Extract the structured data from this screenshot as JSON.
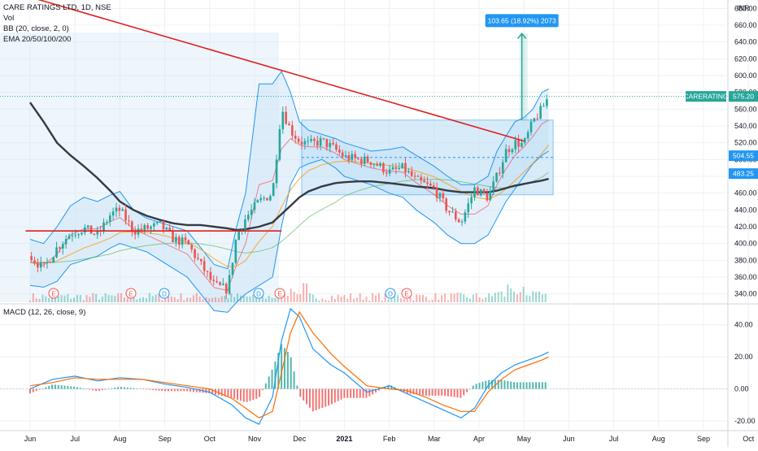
{
  "legend": {
    "symbol": "CARE RATINGS LTD, 1D, NSE",
    "volume": "Vol",
    "bb": "BB (20, close, 2, 0)",
    "ema": "EMA 20/50/100/200",
    "macd": "MACD (12, 26, close, 9)"
  },
  "currency": "INR",
  "colors": {
    "up": "#26a69a",
    "down": "#ef5350",
    "bb": "#2196f3",
    "bb_fill": "#cde5f7",
    "ema_200": "#363a45",
    "trendline": "#e02020",
    "box_border": "#2196f3",
    "box_fill": "#b9dcf5",
    "macd_line": "#2196f3",
    "signal_line": "#ff6d00"
  },
  "chart_data": [
    {
      "type": "candlestick",
      "x_axis": {
        "labels": [
          "Jun",
          "Jul",
          "Aug",
          "Sep",
          "Oct",
          "Nov",
          "Dec",
          "2021",
          "Feb",
          "Mar",
          "Apr",
          "May",
          "Jun",
          "Jul",
          "Aug",
          "Sep",
          "Oct"
        ]
      },
      "y_axis": {
        "ticks": [
          340,
          360,
          380,
          400,
          420,
          440,
          460,
          480,
          500,
          520,
          540,
          560,
          580,
          600,
          620,
          640,
          660,
          680
        ],
        "tick_labels": [
          "340.00",
          "360.00",
          "380.00",
          "400.00",
          "420.00",
          "440.00",
          "460.00",
          "480.00",
          "500.00",
          "520.00",
          "540.00",
          "560.00",
          "580.00",
          "600.00",
          "620.00",
          "640.00",
          "660.00",
          "680.00"
        ],
        "range": [
          330,
          690
        ],
        "scale": "linear",
        "grid": true
      },
      "price_labels": [
        {
          "name": "CARERATING",
          "value": "575.20",
          "color": "#26a69a"
        },
        {
          "value": "504.55",
          "color": "#2196f3"
        },
        {
          "value": "483.25",
          "color": "#2196f3"
        }
      ],
      "measure_label": "103.65 (18.92%) 2073",
      "event_markers": [
        "E",
        "E",
        "D",
        "D",
        "E",
        "D",
        "E"
      ],
      "close_series": {
        "x_months": [
          0.0,
          0.3,
          0.6,
          0.9,
          1.2,
          1.5,
          1.8,
          2.0,
          2.3,
          2.6,
          2.9,
          3.2,
          3.5,
          3.8,
          4.1,
          4.4,
          4.6,
          4.8,
          5.1,
          5.4,
          5.6,
          5.8,
          6.0,
          6.2,
          6.5,
          6.8,
          7.0,
          7.3,
          7.6,
          8.0,
          8.3,
          8.6,
          9.0,
          9.3,
          9.6,
          9.9,
          10.2,
          10.4,
          10.6,
          10.8,
          11.0,
          11.2,
          11.4,
          11.55
        ],
        "close": [
          385,
          370,
          395,
          412,
          418,
          410,
          435,
          440,
          415,
          418,
          422,
          405,
          400,
          375,
          350,
          345,
          410,
          430,
          450,
          460,
          562,
          535,
          522,
          518,
          522,
          512,
          503,
          500,
          498,
          485,
          490,
          475,
          465,
          440,
          425,
          465,
          455,
          480,
          510,
          520,
          518,
          545,
          560,
          575.2
        ]
      },
      "bb_upper": [
        405,
        400,
        420,
        445,
        455,
        450,
        458,
        462,
        440,
        430,
        425,
        420,
        415,
        395,
        375,
        370,
        420,
        460,
        590,
        590,
        605,
        580,
        545,
        535,
        530,
        525,
        520,
        515,
        510,
        512,
        515,
        505,
        492,
        480,
        470,
        470,
        480,
        510,
        528,
        545,
        550,
        560,
        580,
        584
      ],
      "bb_lower": [
        350,
        348,
        355,
        375,
        380,
        385,
        395,
        400,
        395,
        390,
        380,
        370,
        360,
        340,
        320,
        318,
        330,
        340,
        350,
        360,
        420,
        470,
        490,
        495,
        500,
        490,
        480,
        475,
        470,
        460,
        455,
        440,
        425,
        410,
        400,
        400,
        410,
        430,
        450,
        465,
        480,
        495,
        505,
        510
      ],
      "ema_200": [
        568,
        545,
        520,
        505,
        492,
        478,
        462,
        450,
        440,
        433,
        428,
        424,
        422,
        422,
        420,
        418,
        416,
        417,
        420,
        425,
        435,
        445,
        455,
        462,
        468,
        472,
        473,
        474,
        474,
        472,
        470,
        468,
        466,
        463,
        461,
        461,
        461,
        463,
        466,
        469,
        471,
        473,
        475,
        477
      ],
      "trendlines": [
        {
          "from": {
            "x_months": -0.1,
            "price": 695
          },
          "to": {
            "x_months": 11.0,
            "price": 522
          }
        },
        {
          "from": {
            "x_months": -0.1,
            "price": 415
          },
          "to": {
            "x_months": 5.6,
            "price": 415
          }
        }
      ],
      "ranges": [
        {
          "x_from_months": 6.05,
          "x_to_months": 11.65,
          "price_from": 458,
          "price_to": 547
        }
      ],
      "measure_range": {
        "x_months": 10.9,
        "price_from": 547,
        "price_to": 650
      }
    },
    {
      "type": "bar+line",
      "title": "MACD (12, 26, close, 9)",
      "y_axis": {
        "ticks": [
          -20,
          0,
          20,
          40
        ],
        "tick_labels": [
          "-20.00",
          "0.00",
          "20.00",
          "40.00"
        ],
        "range": [
          -25,
          52
        ]
      },
      "macd": {
        "x_months": [
          0.0,
          0.5,
          1.0,
          1.5,
          2.0,
          2.5,
          3.0,
          3.5,
          4.0,
          4.5,
          4.8,
          5.1,
          5.4,
          5.6,
          5.8,
          6.0,
          6.3,
          6.7,
          7.0,
          7.5,
          8.0,
          8.4,
          8.8,
          9.2,
          9.6,
          9.9,
          10.2,
          10.5,
          10.8,
          11.1,
          11.4,
          11.55
        ],
        "values": [
          0,
          6,
          8,
          5,
          7,
          6,
          3,
          1,
          -2,
          -10,
          -18,
          -22,
          -5,
          30,
          50,
          45,
          25,
          15,
          10,
          -2,
          2,
          -3,
          -8,
          -13,
          -18,
          -12,
          2,
          10,
          15,
          18,
          21,
          23
        ]
      },
      "signal": {
        "x_months": [
          0.0,
          0.5,
          1.0,
          1.5,
          2.0,
          2.5,
          3.0,
          3.5,
          4.0,
          4.5,
          4.8,
          5.1,
          5.4,
          5.6,
          5.8,
          6.0,
          6.3,
          6.7,
          7.0,
          7.5,
          8.0,
          8.4,
          8.8,
          9.2,
          9.6,
          9.9,
          10.2,
          10.5,
          10.8,
          11.1,
          11.4,
          11.55
        ],
        "values": [
          2,
          4,
          7,
          6,
          6,
          6,
          4,
          2,
          0,
          -6,
          -12,
          -18,
          -14,
          10,
          35,
          48,
          35,
          22,
          14,
          2,
          0,
          -1,
          -5,
          -10,
          -14,
          -14,
          -2,
          6,
          12,
          15,
          18,
          20
        ]
      }
    }
  ]
}
